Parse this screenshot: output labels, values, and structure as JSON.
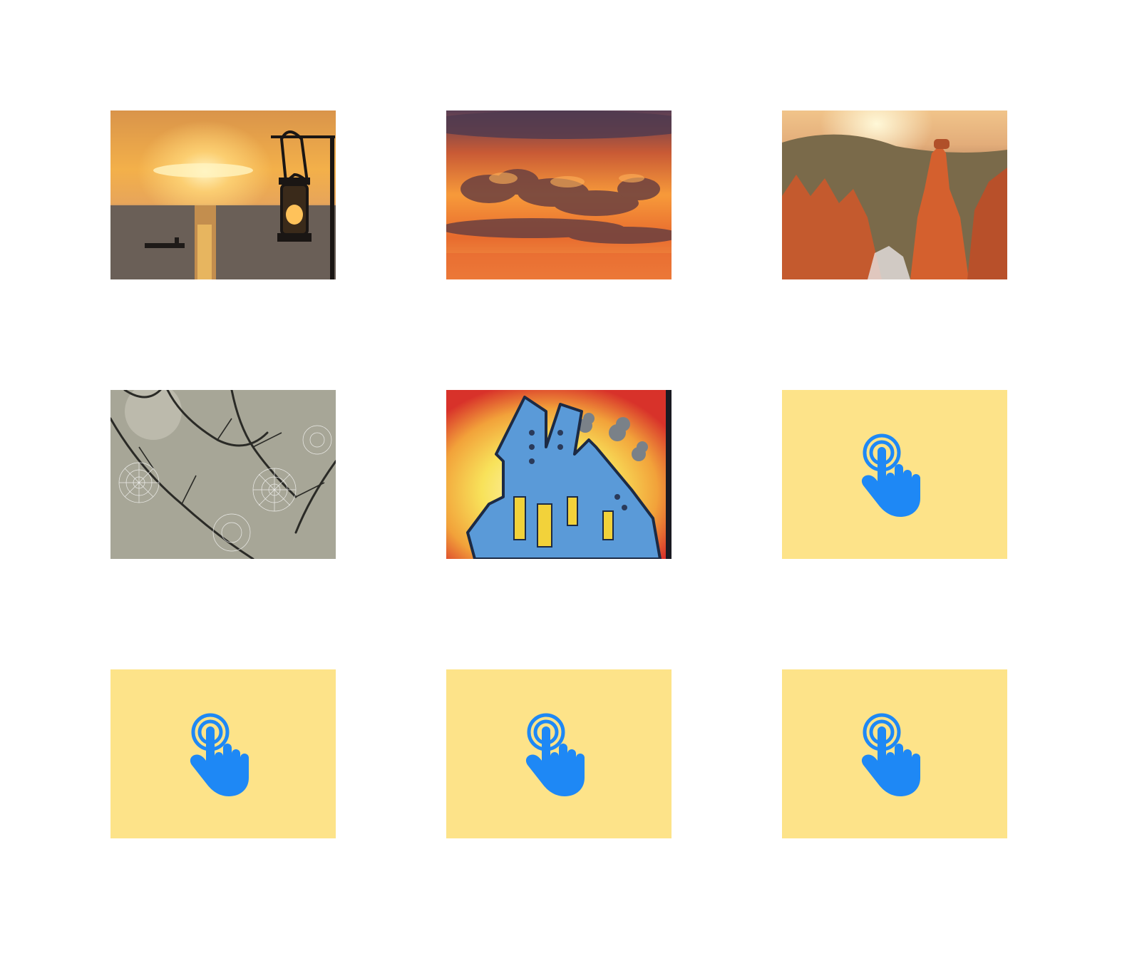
{
  "grid": {
    "tiles": [
      {
        "kind": "image",
        "subject": "sunset-lantern"
      },
      {
        "kind": "image",
        "subject": "sunset-clouds"
      },
      {
        "kind": "image",
        "subject": "canyon-hoodoos"
      },
      {
        "kind": "image",
        "subject": "spiderwebs-branches"
      },
      {
        "kind": "image",
        "subject": "guitar-factory-illustration"
      },
      {
        "kind": "placeholder",
        "icon": "tap-hand-icon"
      },
      {
        "kind": "placeholder",
        "icon": "tap-hand-icon"
      },
      {
        "kind": "placeholder",
        "icon": "tap-hand-icon"
      },
      {
        "kind": "placeholder",
        "icon": "tap-hand-icon"
      }
    ]
  },
  "colors": {
    "placeholder_bg": "#fde389",
    "icon_blue": "#1e88f5",
    "page_bg": "#ffffff"
  }
}
